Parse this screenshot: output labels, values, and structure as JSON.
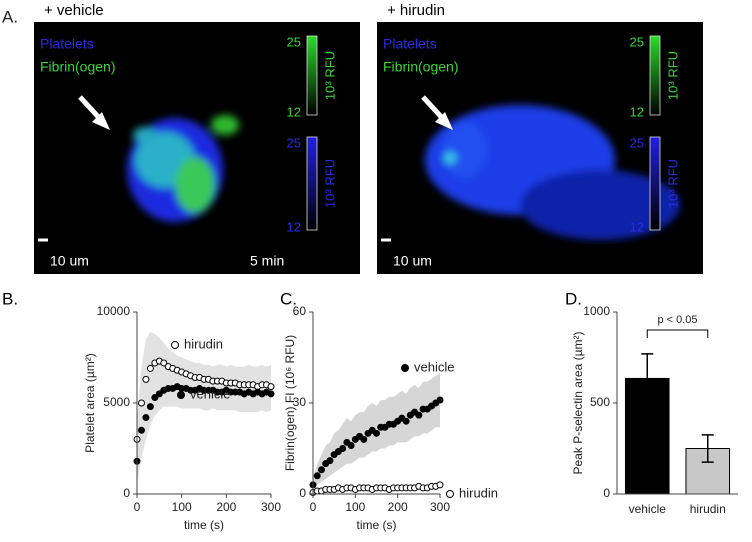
{
  "figure_label": "A.",
  "panels": [
    {
      "title": "+ vehicle",
      "labels": [
        "Platelets",
        "Fibrin(ogen)"
      ],
      "colorbars": [
        {
          "max": 25,
          "min": 12,
          "unit": "10³ RFU"
        },
        {
          "max": 25,
          "min": 12,
          "unit": "10³ RFU"
        }
      ],
      "scale_bar": "10 um",
      "time": "5 min"
    },
    {
      "title": "+ hirudin",
      "labels": [
        "Platelets",
        "Fibrin(ogen)"
      ],
      "colorbars": [
        {
          "max": 25,
          "min": 12,
          "unit": "10³ RFU"
        },
        {
          "max": 25,
          "min": 12,
          "unit": "10³ RFU"
        }
      ],
      "scale_bar": "10 um"
    }
  ],
  "chart_data": [
    {
      "type": "scatter",
      "panel_label": "B.",
      "x_label": "time (s)",
      "y_label": "Platelet area (µm²)",
      "x": [
        0,
        10,
        20,
        30,
        40,
        50,
        60,
        70,
        80,
        90,
        100,
        110,
        120,
        130,
        140,
        150,
        160,
        170,
        180,
        190,
        200,
        210,
        220,
        230,
        240,
        250,
        260,
        270,
        280,
        290,
        300
      ],
      "series": [
        {
          "name": "hirudin",
          "marker": "open",
          "color": "#000000",
          "values": [
            3000,
            5000,
            6300,
            6900,
            7200,
            7300,
            7200,
            7000,
            6900,
            6800,
            6700,
            6600,
            6500,
            6400,
            6400,
            6300,
            6300,
            6200,
            6200,
            6200,
            6100,
            6100,
            6100,
            6000,
            6000,
            6000,
            6000,
            5900,
            6000,
            6000,
            5900
          ]
        },
        {
          "name": "vehicle",
          "marker": "filled",
          "color": "#000000",
          "values": [
            1800,
            3500,
            4200,
            4800,
            5300,
            5500,
            5700,
            5800,
            5800,
            5900,
            5800,
            5800,
            5700,
            5700,
            5800,
            5700,
            5700,
            5700,
            5600,
            5600,
            5700,
            5600,
            5600,
            5600,
            5500,
            5600,
            5500,
            5600,
            5500,
            5600,
            5500
          ]
        }
      ],
      "band": {
        "color": "#e2e2e2",
        "upper": [
          4000,
          7000,
          8500,
          8900,
          8800,
          8600,
          8300,
          8000,
          7800,
          7600,
          7500,
          7400,
          7300,
          7200,
          7200,
          7100,
          7100,
          7000,
          7100,
          7100,
          7000,
          7100,
          7000,
          7000,
          7000,
          7100,
          7000,
          7000,
          7100,
          7000,
          7100
        ],
        "lower": [
          500,
          2000,
          3000,
          3800,
          4300,
          4600,
          4800,
          4800,
          4800,
          4800,
          4700,
          4700,
          4700,
          4700,
          4700,
          4600,
          4600,
          4700,
          4600,
          4600,
          4600,
          4600,
          4600,
          4500,
          4500,
          4500,
          4500,
          4500,
          4600,
          4500,
          4600
        ]
      },
      "xlim": [
        0,
        300
      ],
      "xticks": [
        0,
        100,
        200,
        300
      ],
      "ylim": [
        0,
        10000
      ],
      "yticks": [
        0,
        5000,
        10000
      ]
    },
    {
      "type": "scatter",
      "panel_label": "C.",
      "x_label": "time (s)",
      "y_label": "Fibrin(ogen) FI (10⁶ RFU)",
      "x": [
        0,
        10,
        20,
        30,
        40,
        50,
        60,
        70,
        80,
        90,
        100,
        110,
        120,
        130,
        140,
        150,
        160,
        170,
        180,
        190,
        200,
        210,
        220,
        230,
        240,
        250,
        260,
        270,
        280,
        290,
        300
      ],
      "series": [
        {
          "name": "vehicle",
          "marker": "filled",
          "color": "#000000",
          "values": [
            3,
            6,
            8,
            10,
            11,
            13,
            14,
            15,
            17,
            16,
            18,
            19,
            18,
            20,
            21,
            20,
            22,
            22,
            23,
            23,
            24,
            25,
            24,
            26,
            27,
            26,
            28,
            28,
            29,
            30,
            31
          ]
        },
        {
          "name": "hirudin",
          "marker": "open",
          "color": "#000000",
          "values": [
            0.5,
            1,
            1,
            1.5,
            1.5,
            1.5,
            2,
            1.5,
            2,
            2,
            1.5,
            2,
            2,
            2,
            1.5,
            2,
            2,
            2,
            1.5,
            2,
            2,
            2,
            2,
            2,
            2,
            2.5,
            2,
            2,
            2.5,
            2.5,
            3
          ]
        }
      ],
      "band": {
        "color": "#d6d6d6",
        "upper": [
          5,
          10,
          13,
          16,
          17,
          20,
          21,
          23,
          25,
          24,
          26,
          27,
          27,
          29,
          30,
          29,
          31,
          31,
          32,
          32,
          33,
          34,
          33,
          35,
          36,
          35,
          37,
          37,
          38,
          39,
          40
        ],
        "lower": [
          2,
          3,
          4,
          5,
          6,
          7,
          8,
          9,
          10,
          10,
          11,
          12,
          12,
          13,
          14,
          14,
          15,
          15,
          16,
          16,
          17,
          17,
          17,
          18,
          19,
          19,
          20,
          20,
          21,
          22,
          22
        ]
      },
      "xlim": [
        0,
        300
      ],
      "xticks": [
        0,
        100,
        200,
        300
      ],
      "ylim": [
        0,
        60
      ],
      "yticks": [
        0,
        30,
        60
      ]
    },
    {
      "type": "bar",
      "panel_label": "D.",
      "y_label": "Peak P-selectin area (µm²)",
      "categories": [
        "vehicle",
        "hirudin"
      ],
      "values": [
        635,
        250
      ],
      "errors": [
        135,
        75
      ],
      "colors": [
        "#000000",
        "#c8c8c8"
      ],
      "annotation": "p < 0.05",
      "ylim": [
        0,
        1000
      ],
      "yticks": [
        0,
        500,
        1000
      ]
    }
  ]
}
